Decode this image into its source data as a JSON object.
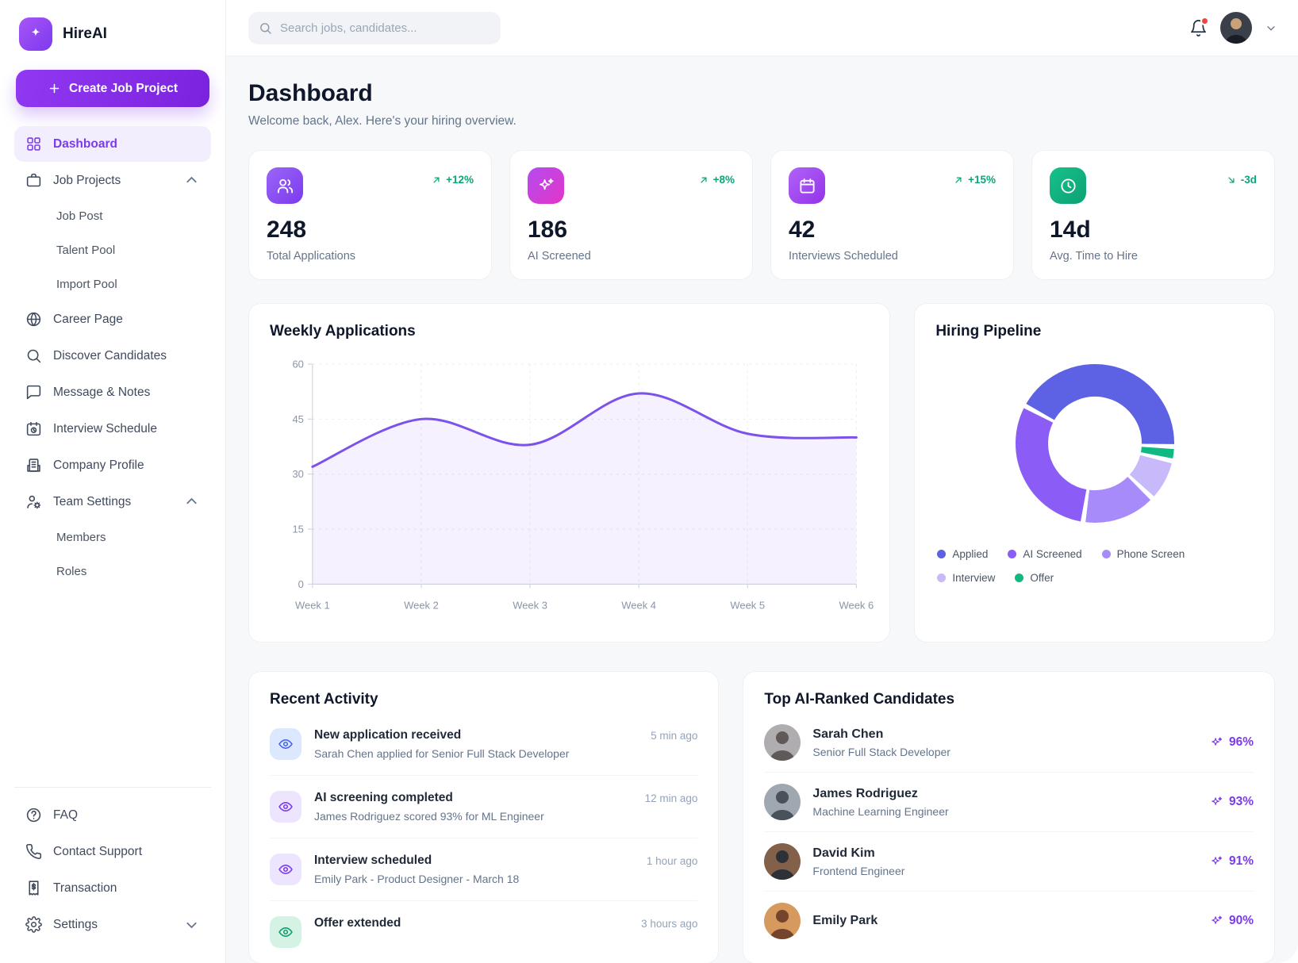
{
  "app": {
    "name": "HireAI"
  },
  "theme": {
    "primary": "#7c3aed",
    "primary_light": "#f3eefe",
    "positive": "#0da678",
    "line": "#7b52ec"
  },
  "topbar": {
    "search_placeholder": "Search jobs, candidates...",
    "search_value": ""
  },
  "sidebar": {
    "create_button": "Create Job Project",
    "items": [
      {
        "label": "Dashboard",
        "active": true
      },
      {
        "label": "Job Projects",
        "expanded": true
      },
      {
        "label": "Job Post"
      },
      {
        "label": "Talent Pool"
      },
      {
        "label": "Import Pool"
      },
      {
        "label": "Career Page"
      },
      {
        "label": "Discover Candidates"
      },
      {
        "label": "Message & Notes"
      },
      {
        "label": "Interview Schedule"
      },
      {
        "label": "Company Profile"
      },
      {
        "label": "Team Settings",
        "expanded": true
      },
      {
        "label": "Members"
      },
      {
        "label": "Roles"
      }
    ],
    "footer_items": [
      {
        "label": "FAQ"
      },
      {
        "label": "Contact Support"
      },
      {
        "label": "Transaction"
      },
      {
        "label": "Settings",
        "expanded": false
      }
    ]
  },
  "header": {
    "title": "Dashboard",
    "subtitle": "Welcome back, Alex. Here's your hiring overview."
  },
  "stats": [
    {
      "value": "248",
      "label": "Total Applications",
      "change": "+12%",
      "trend": "up",
      "icon": "users-icon"
    },
    {
      "value": "186",
      "label": "AI Screened",
      "change": "+8%",
      "trend": "up",
      "icon": "sparkles-icon"
    },
    {
      "value": "42",
      "label": "Interviews Scheduled",
      "change": "+15%",
      "trend": "up",
      "icon": "calendar-icon"
    },
    {
      "value": "14d",
      "label": "Avg. Time to Hire",
      "change": "-3d",
      "trend": "down",
      "icon": "clock-icon"
    }
  ],
  "chart_data": [
    {
      "type": "area",
      "title": "Weekly Applications",
      "categories": [
        "Week 1",
        "Week 2",
        "Week 3",
        "Week 4",
        "Week 5",
        "Week 6"
      ],
      "values": [
        32,
        45,
        38,
        52,
        41,
        40
      ],
      "ylim": [
        0,
        60
      ],
      "yticks": [
        0,
        15,
        30,
        45,
        60
      ],
      "grid": true,
      "line_color": "#7b52ec",
      "fill_color": "#7b52ec",
      "fill_opacity": 0.08
    },
    {
      "type": "donut",
      "title": "Hiring Pipeline",
      "legend": [
        {
          "label": "Applied",
          "value": 44,
          "color": "#5c62e3"
        },
        {
          "label": "AI Screened",
          "value": 31,
          "color": "#8b5cf6"
        },
        {
          "label": "Phone Screen",
          "value": 15,
          "color": "#a78bfa"
        },
        {
          "label": "Interview",
          "value": 8,
          "color": "#c7b9fa"
        },
        {
          "label": "Offer",
          "value": 2,
          "color": "#10b981"
        }
      ],
      "layout": {
        "start_angle_deg": 300,
        "gap_deg": 3.6,
        "inner_ratio": 0.59,
        "draw_order": [
          "Applied",
          "Offer",
          "Interview",
          "Phone Screen",
          "AI Screened"
        ],
        "legend_position": "bottom"
      }
    }
  ],
  "recent_activity": {
    "title": "Recent Activity",
    "items": [
      {
        "title": "New application received",
        "description": "Sarah Chen applied for Senior Full Stack Developer",
        "time": "5 min ago",
        "tile_color": "#dbe8fd",
        "icon_color": "#4a63e7"
      },
      {
        "title": "AI screening completed",
        "description": "James Rodriguez scored 93% for ML Engineer",
        "time": "12 min ago",
        "tile_color": "#ece5fd",
        "icon_color": "#7c3aed"
      },
      {
        "title": "Interview scheduled",
        "description": "Emily Park - Product Designer - March 18",
        "time": "1 hour ago",
        "tile_color": "#ece5fd",
        "icon_color": "#7c3aed"
      },
      {
        "title": "Offer extended",
        "description": "",
        "time": "3 hours ago",
        "tile_color": "#d4f3e5",
        "icon_color": "#0f9d6c"
      }
    ]
  },
  "candidates": {
    "title": "Top AI-Ranked Candidates",
    "items": [
      {
        "name": "Sarah Chen",
        "role": "Senior Full Stack Developer",
        "score": "96%",
        "avatar_bg": "#b0adb0",
        "avatar_fg": "#5f5a57"
      },
      {
        "name": "James Rodriguez",
        "role": "Machine Learning Engineer",
        "score": "93%",
        "avatar_bg": "#9fa8b0",
        "avatar_fg": "#49525a"
      },
      {
        "name": "David Kim",
        "role": "Frontend Engineer",
        "score": "91%",
        "avatar_bg": "#82604a",
        "avatar_fg": "#2c3137"
      },
      {
        "name": "Emily Park",
        "role": "",
        "score": "90%",
        "avatar_bg": "#d79a5e",
        "avatar_fg": "#74452c"
      }
    ]
  }
}
